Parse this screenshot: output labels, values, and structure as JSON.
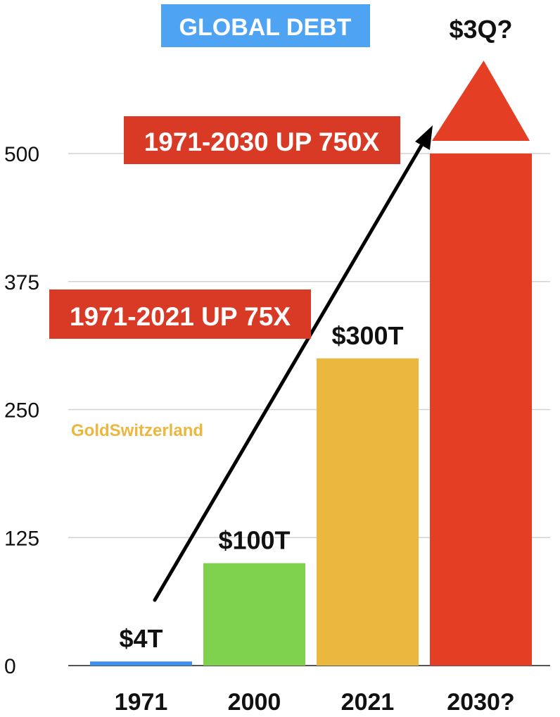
{
  "chart_data": {
    "type": "bar",
    "title": "GLOBAL DEBT",
    "categories": [
      "1971",
      "2000",
      "2021",
      "2030?"
    ],
    "values": [
      4,
      100,
      300,
      500
    ],
    "value_labels": [
      "$4T",
      "$100T",
      "$300T",
      "$3Q?"
    ],
    "bar_colors": [
      "#3d8ff0",
      "#7ed24e",
      "#ecb73f",
      "#e43e25"
    ],
    "yticks": [
      0,
      125,
      250,
      375,
      500
    ],
    "ylim": [
      0,
      500
    ],
    "grid": true,
    "last_bar_continues": true,
    "annotations": [
      {
        "text": "1971-2021 UP 75X",
        "color": "#d93a26"
      },
      {
        "text": "1971-2030 UP 750X",
        "color": "#d93a26"
      }
    ],
    "watermark": {
      "text": "GoldSwitzerland",
      "color": "#ecb73f"
    },
    "title_color": "#4ea3f2",
    "trend_arrow": true
  }
}
